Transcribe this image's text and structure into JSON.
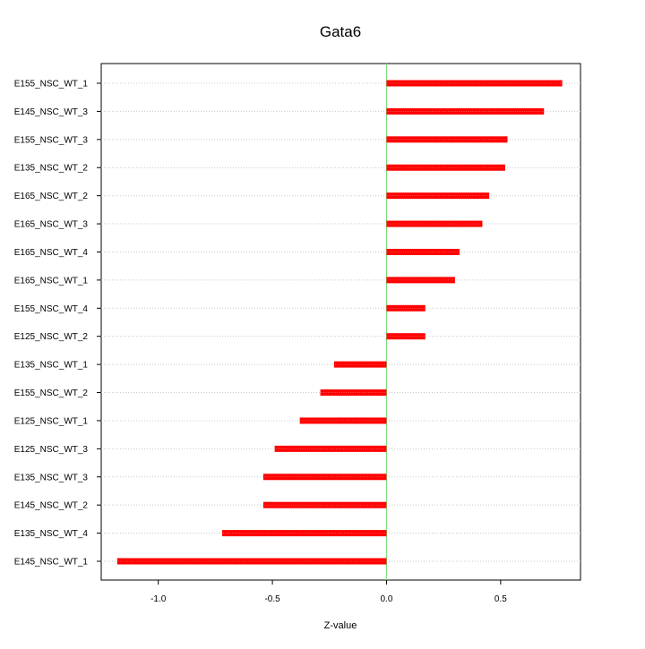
{
  "chart_data": {
    "type": "bar",
    "orientation": "horizontal",
    "title": "Gata6",
    "xlabel": "Z-value",
    "ylabel": "",
    "xlim": [
      -1.25,
      0.85
    ],
    "xticks": [
      -1.0,
      -0.5,
      0.0,
      0.5
    ],
    "xtick_labels": [
      "-1.0",
      "-0.5",
      "0.0",
      "0.5"
    ],
    "grid": "horizontal dotted",
    "zero_line_color": "#7fdc7f",
    "bar_color": "#ff0000",
    "categories": [
      "E155_NSC_WT_1",
      "E145_NSC_WT_3",
      "E155_NSC_WT_3",
      "E135_NSC_WT_2",
      "E165_NSC_WT_2",
      "E165_NSC_WT_3",
      "E165_NSC_WT_4",
      "E165_NSC_WT_1",
      "E155_NSC_WT_4",
      "E125_NSC_WT_2",
      "E135_NSC_WT_1",
      "E155_NSC_WT_2",
      "E125_NSC_WT_1",
      "E125_NSC_WT_3",
      "E135_NSC_WT_3",
      "E145_NSC_WT_2",
      "E135_NSC_WT_4",
      "E145_NSC_WT_1"
    ],
    "values": [
      0.77,
      0.69,
      0.53,
      0.52,
      0.45,
      0.42,
      0.32,
      0.3,
      0.17,
      0.17,
      -0.23,
      -0.29,
      -0.38,
      -0.49,
      -0.54,
      -0.54,
      -0.72,
      -1.18
    ]
  }
}
